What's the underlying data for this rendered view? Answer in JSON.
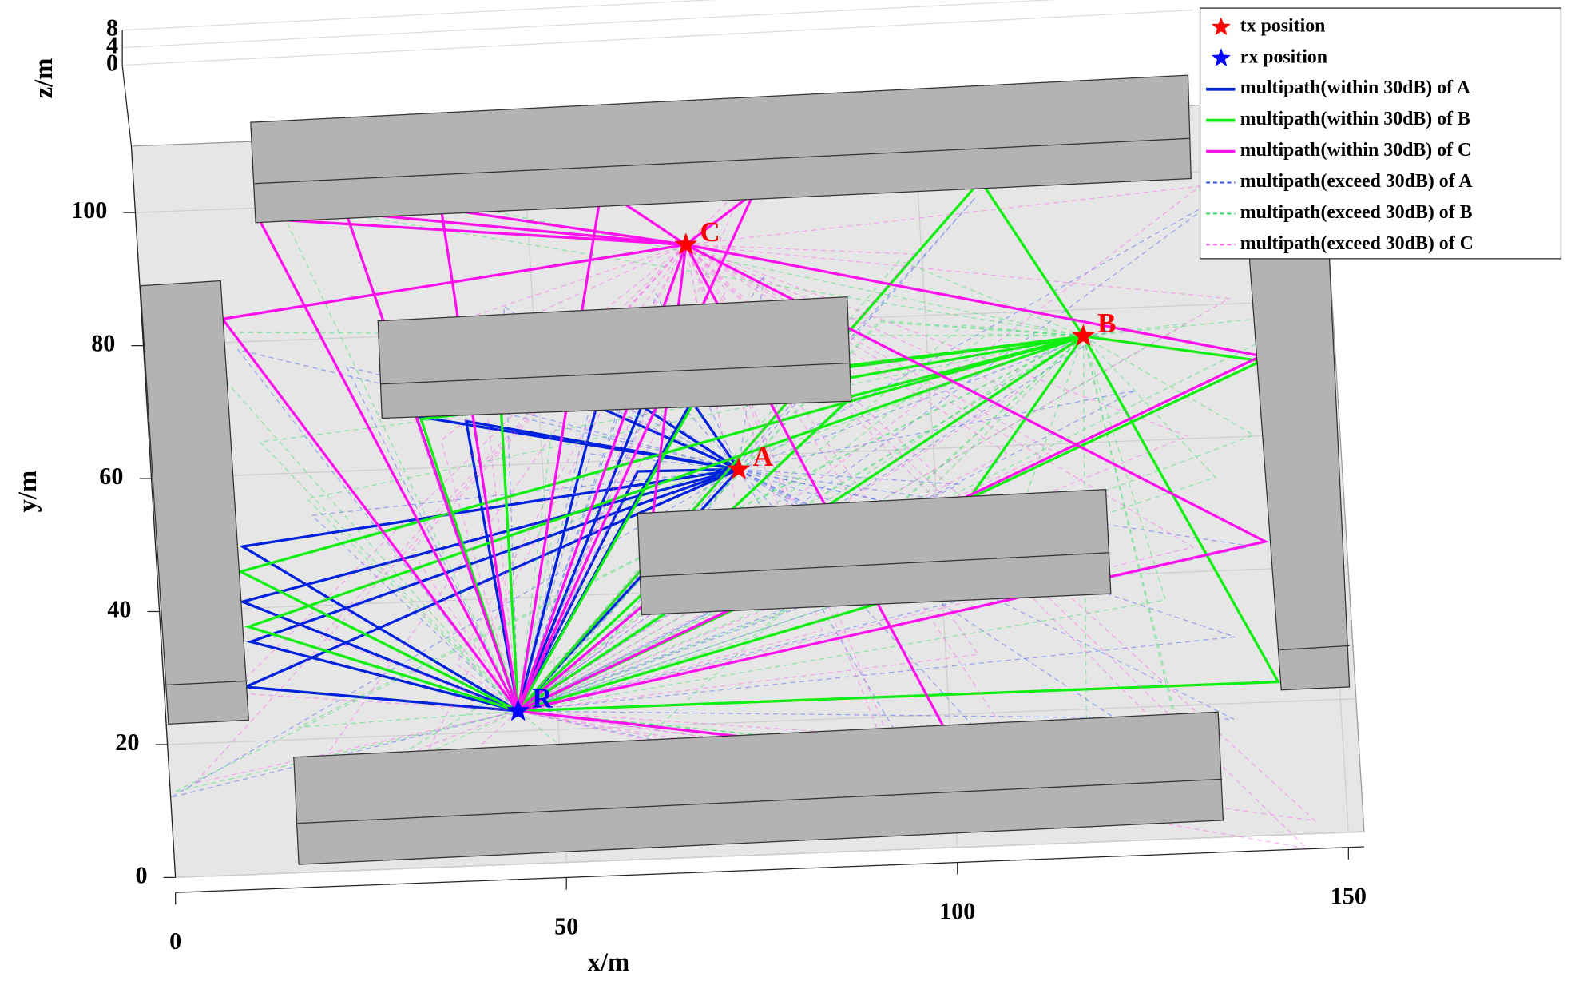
{
  "chart_data": {
    "type": "scatter",
    "xlabel": "x/m",
    "ylabel": "y/m",
    "zlabel": "z/m",
    "xlim": [
      0,
      152
    ],
    "ylim": [
      0,
      110
    ],
    "zlim": [
      0,
      8
    ],
    "xticks": [
      0,
      50,
      100,
      150
    ],
    "yticks": [
      0,
      20,
      40,
      60,
      80,
      100
    ],
    "zticks": [
      0,
      4,
      8
    ],
    "grid": true,
    "legend": "upper right",
    "series": [
      {
        "name": "tx position",
        "color": "#ff0000",
        "marker": "star",
        "labels": [
          "A",
          "B",
          "C"
        ],
        "x": [
          75,
          120,
          70
        ],
        "y": [
          58,
          76,
          92
        ]
      },
      {
        "name": "rx position",
        "color": "#0000ff",
        "marker": "star",
        "labels": [
          "R"
        ],
        "x": [
          45
        ],
        "y": [
          23
        ]
      }
    ],
    "paths": [
      {
        "name": "multipath(within 30dB) of A",
        "color": "#0022dd",
        "style": "solid"
      },
      {
        "name": "multipath(within 30dB) of B",
        "color": "#11ee11",
        "style": "solid"
      },
      {
        "name": "multipath(within 30dB) of C",
        "color": "#ff11ee",
        "style": "solid"
      },
      {
        "name": "multipath(exceed 30dB) of A",
        "color": "#3355ee",
        "style": "dashed"
      },
      {
        "name": "multipath(exceed 30dB) of B",
        "color": "#22dd55",
        "style": "dashed"
      },
      {
        "name": "multipath(exceed 30dB) of C",
        "color": "#ff55ee",
        "style": "dashed"
      }
    ]
  }
}
